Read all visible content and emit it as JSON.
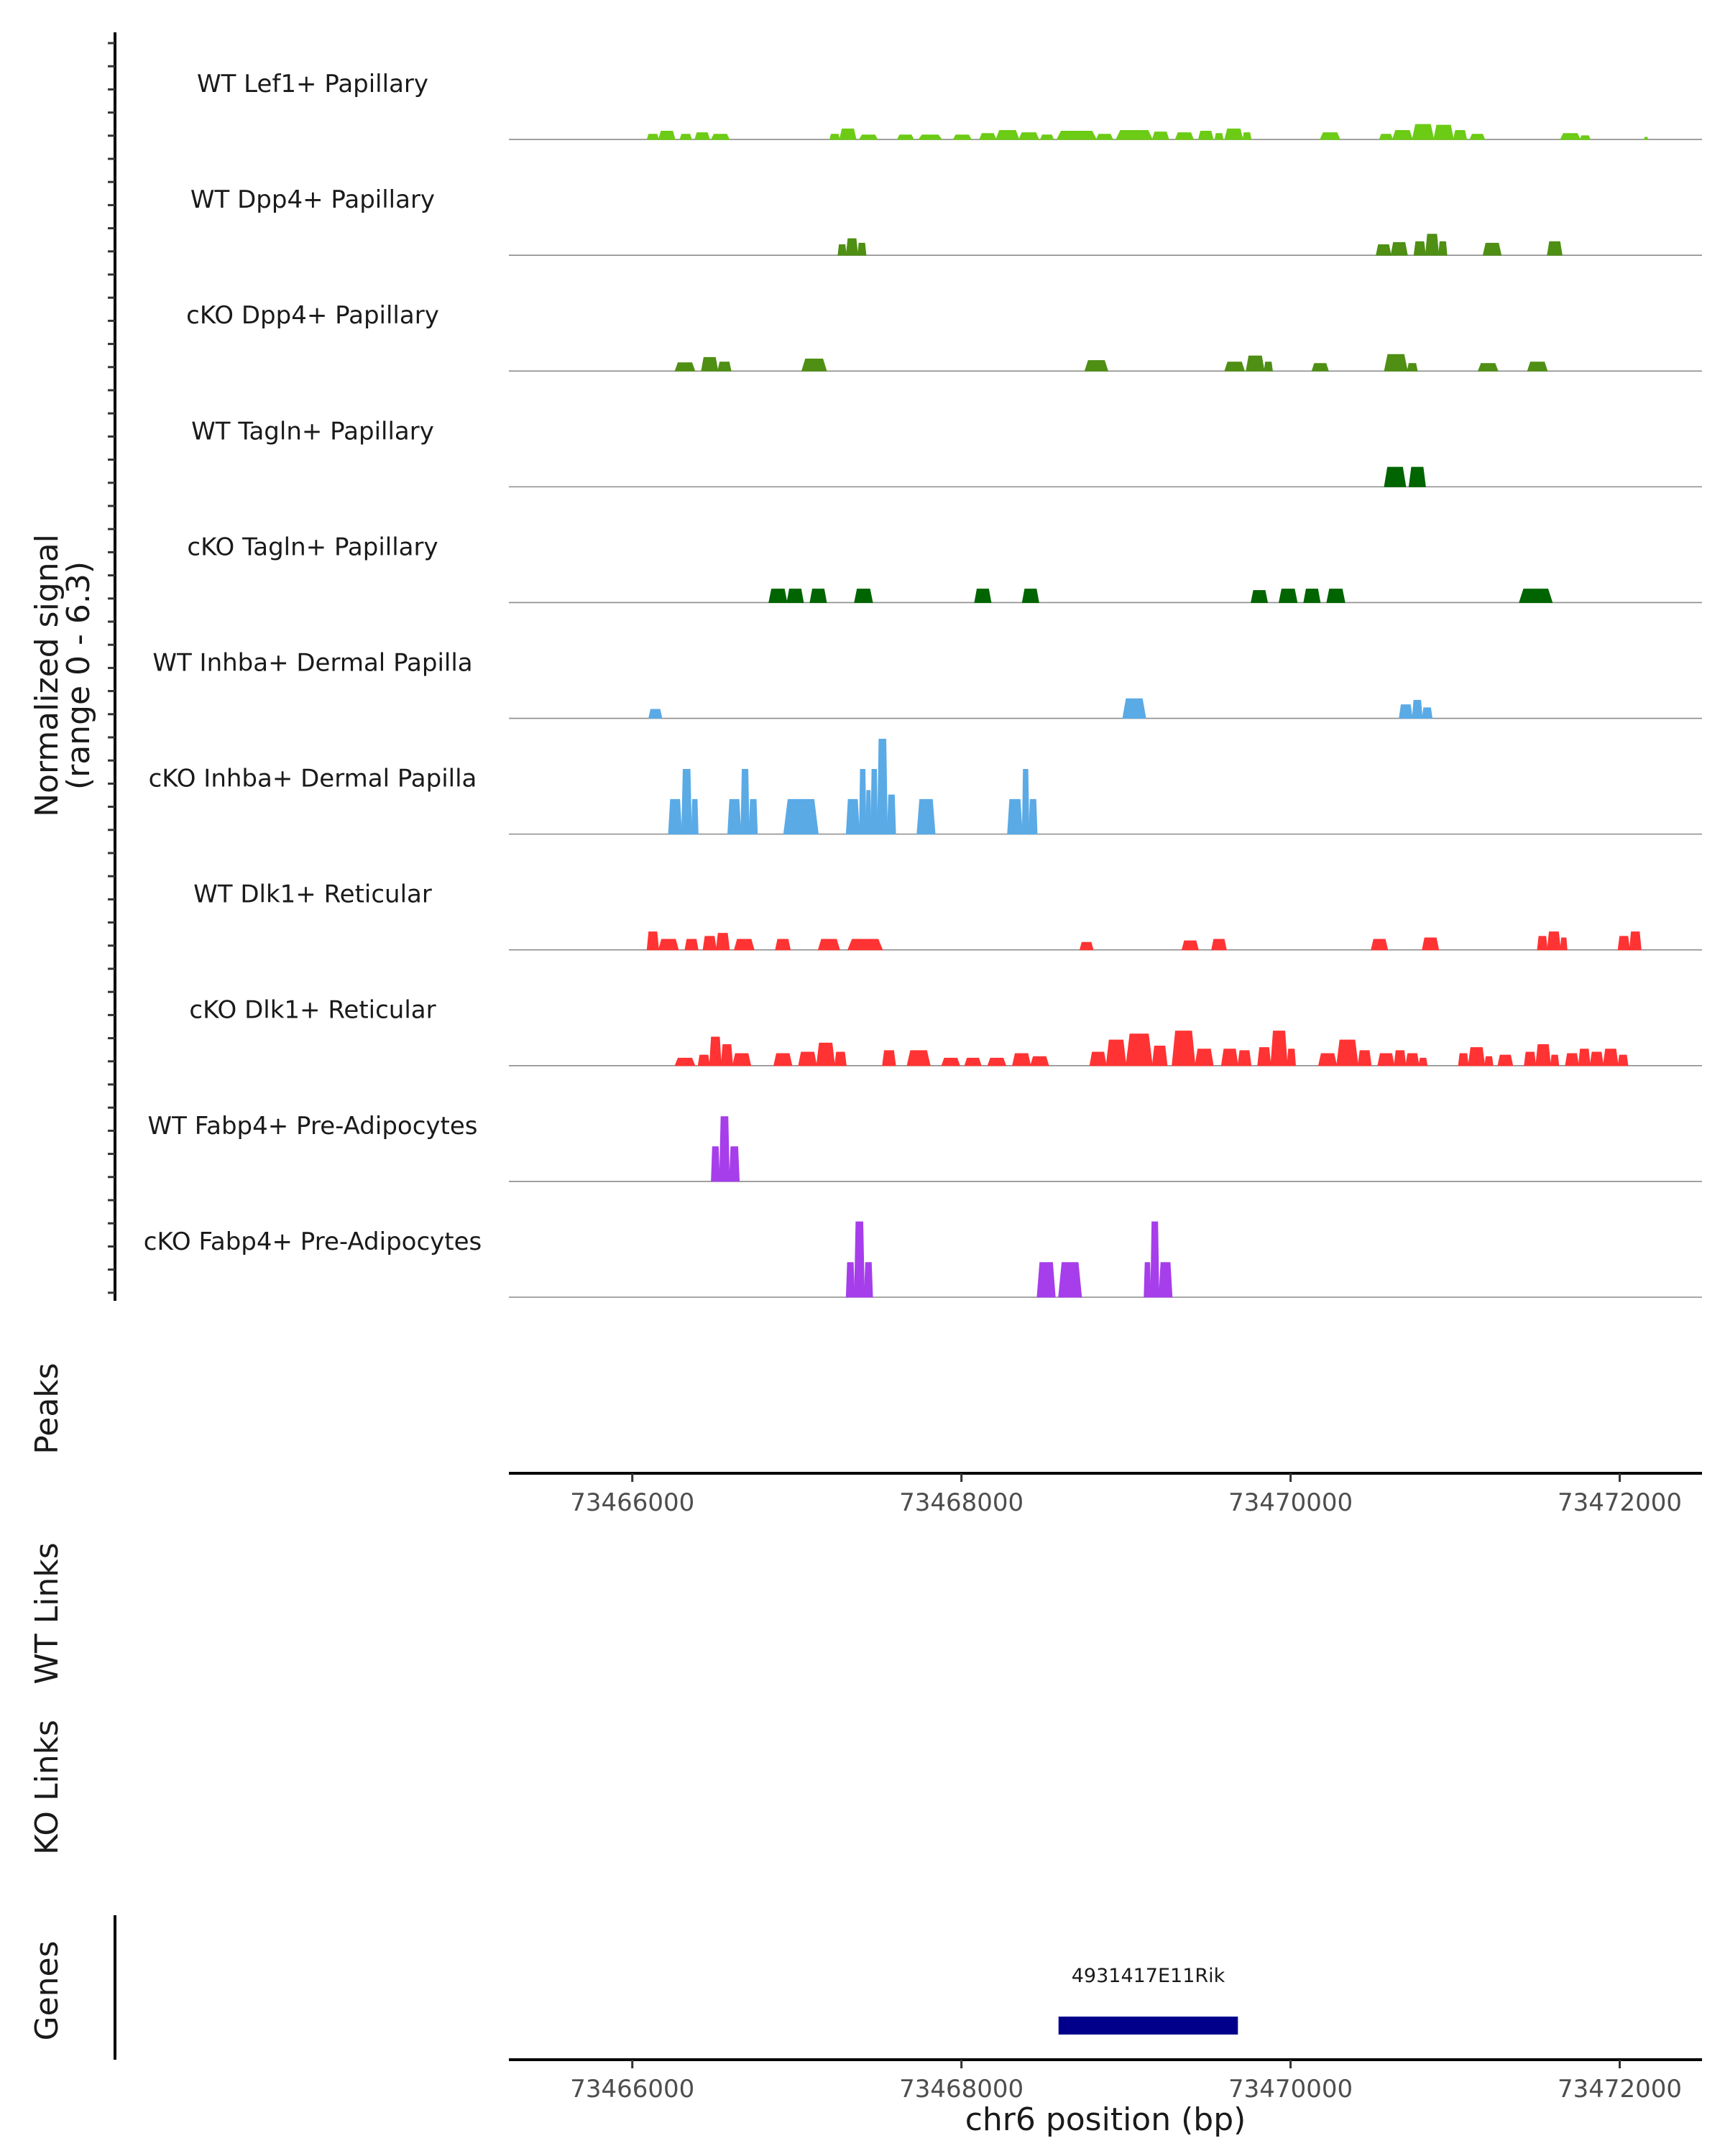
{
  "chart_data": {
    "type": "area",
    "chromosome": "chr6",
    "xlim": [
      73465250,
      73472500
    ],
    "signal_range": [
      0,
      6.3
    ],
    "coverage_ylabel": "Normalized signal\n(range 0 - 6.3)",
    "panels": {
      "peaks": "Peaks",
      "wt_links": "WT Links",
      "ko_links": "KO Links",
      "genes": "Genes"
    },
    "x_ticks": [
      73466000,
      73468000,
      73470000,
      73472000
    ],
    "x_tick_labels": [
      "73466000",
      "73468000",
      "73470000",
      "73472000"
    ],
    "xlabel": "chr6 position (bp)",
    "tracks": [
      {
        "name": "WT Lef1+ Papillary",
        "color": "#6CCB14",
        "peaks": [
          [
            73466090,
            73466160,
            0.35
          ],
          [
            73466160,
            73466260,
            0.55
          ],
          [
            73466290,
            73466360,
            0.35
          ],
          [
            73466380,
            73466470,
            0.45
          ],
          [
            73466480,
            73466590,
            0.35
          ],
          [
            73467200,
            73467260,
            0.35
          ],
          [
            73467260,
            73467360,
            0.7
          ],
          [
            73467380,
            73467490,
            0.3
          ],
          [
            73467610,
            73467710,
            0.3
          ],
          [
            73467740,
            73467880,
            0.3
          ],
          [
            73467950,
            73468060,
            0.3
          ],
          [
            73468110,
            73468210,
            0.4
          ],
          [
            73468210,
            73468350,
            0.6
          ],
          [
            73468350,
            73468470,
            0.45
          ],
          [
            73468480,
            73468560,
            0.3
          ],
          [
            73468580,
            73468820,
            0.55
          ],
          [
            73468820,
            73468920,
            0.35
          ],
          [
            73468940,
            73469160,
            0.6
          ],
          [
            73469160,
            73469260,
            0.5
          ],
          [
            73469300,
            73469410,
            0.45
          ],
          [
            73469440,
            73469530,
            0.55
          ],
          [
            73469540,
            73469590,
            0.4
          ],
          [
            73469600,
            73469710,
            0.7
          ],
          [
            73469710,
            73469760,
            0.45
          ],
          [
            73470180,
            73470300,
            0.45
          ],
          [
            73470540,
            73470620,
            0.35
          ],
          [
            73470620,
            73470740,
            0.6
          ],
          [
            73470740,
            73470870,
            1.0
          ],
          [
            73470870,
            73470990,
            0.95
          ],
          [
            73470990,
            73471070,
            0.6
          ],
          [
            73471090,
            73471180,
            0.35
          ],
          [
            73471640,
            73471760,
            0.4
          ],
          [
            73471760,
            73471820,
            0.25
          ],
          [
            73472150,
            73472170,
            0.15
          ]
        ]
      },
      {
        "name": "WT Dpp4+ Papillary",
        "color": "#4E8F14",
        "peaks": [
          [
            73467250,
            73467300,
            0.7
          ],
          [
            73467300,
            73467370,
            1.1
          ],
          [
            73467370,
            73467420,
            0.8
          ],
          [
            73470520,
            73470610,
            0.7
          ],
          [
            73470610,
            73470710,
            0.85
          ],
          [
            73470750,
            73470820,
            0.9
          ],
          [
            73470820,
            73470900,
            1.4
          ],
          [
            73470900,
            73470950,
            0.9
          ],
          [
            73471170,
            73471280,
            0.8
          ],
          [
            73471560,
            73471650,
            0.9
          ]
        ]
      },
      {
        "name": "cKO Dpp4+ Papillary",
        "color": "#4E8F14",
        "peaks": [
          [
            73466260,
            73466380,
            0.55
          ],
          [
            73466420,
            73466520,
            0.9
          ],
          [
            73466520,
            73466600,
            0.6
          ],
          [
            73467030,
            73467180,
            0.8
          ],
          [
            73468750,
            73468890,
            0.7
          ],
          [
            73469600,
            73469720,
            0.6
          ],
          [
            73469730,
            73469840,
            1.0
          ],
          [
            73469840,
            73469890,
            0.6
          ],
          [
            73470130,
            73470230,
            0.5
          ],
          [
            73470570,
            73470710,
            1.1
          ],
          [
            73470710,
            73470770,
            0.5
          ],
          [
            73471140,
            73471260,
            0.5
          ],
          [
            73471440,
            73471560,
            0.6
          ]
        ]
      },
      {
        "name": "WT Tagln+ Papillary",
        "color": "#006400",
        "peaks": [
          [
            73470570,
            73470700,
            1.3
          ],
          [
            73470720,
            73470820,
            1.3
          ]
        ]
      },
      {
        "name": "cKO Tagln+ Papillary",
        "color": "#006400",
        "peaks": [
          [
            73466830,
            73466940,
            0.9
          ],
          [
            73466940,
            73467040,
            0.9
          ],
          [
            73467080,
            73467180,
            0.9
          ],
          [
            73467350,
            73467460,
            0.9
          ],
          [
            73468080,
            73468180,
            0.9
          ],
          [
            73468370,
            73468470,
            0.9
          ],
          [
            73469760,
            73469860,
            0.8
          ],
          [
            73469930,
            73470040,
            0.9
          ],
          [
            73470080,
            73470180,
            0.9
          ],
          [
            73470220,
            73470330,
            0.9
          ],
          [
            73471390,
            73471590,
            0.9
          ]
        ]
      },
      {
        "name": "WT Inhba+ Dermal Papilla",
        "color": "#5AAAE6",
        "peaks": [
          [
            73466100,
            73466180,
            0.6
          ],
          [
            73468980,
            73469120,
            1.3
          ],
          [
            73470660,
            73470740,
            0.9
          ],
          [
            73470740,
            73470800,
            1.2
          ],
          [
            73470800,
            73470860,
            0.7
          ]
        ]
      },
      {
        "name": "cKO Inhba+ Dermal Papilla",
        "color": "#5AAAE6",
        "peaks": [
          [
            73466220,
            73466300,
            2.3
          ],
          [
            73466300,
            73466360,
            4.3
          ],
          [
            73466360,
            73466400,
            2.3
          ],
          [
            73466580,
            73466660,
            2.3
          ],
          [
            73466660,
            73466710,
            4.3
          ],
          [
            73466710,
            73466760,
            2.3
          ],
          [
            73466920,
            73467130,
            2.3
          ],
          [
            73467300,
            73467380,
            2.3
          ],
          [
            73467380,
            73467420,
            4.3
          ],
          [
            73467420,
            73467450,
            2.9
          ],
          [
            73467450,
            73467490,
            4.3
          ],
          [
            73467490,
            73467550,
            6.3
          ],
          [
            73467550,
            73467600,
            2.6
          ],
          [
            73467730,
            73467840,
            2.3
          ],
          [
            73468280,
            73468370,
            2.3
          ],
          [
            73468370,
            73468410,
            4.3
          ],
          [
            73468410,
            73468460,
            2.3
          ]
        ]
      },
      {
        "name": "WT Dlk1+ Reticular",
        "color": "#FF3333",
        "peaks": [
          [
            73466090,
            73466160,
            1.2
          ],
          [
            73466160,
            73466280,
            0.7
          ],
          [
            73466320,
            73466400,
            0.7
          ],
          [
            73466430,
            73466510,
            0.9
          ],
          [
            73466510,
            73466590,
            1.1
          ],
          [
            73466620,
            73466740,
            0.7
          ],
          [
            73466870,
            73466960,
            0.7
          ],
          [
            73467130,
            73467260,
            0.7
          ],
          [
            73467310,
            73467520,
            0.7
          ],
          [
            73468720,
            73468800,
            0.5
          ],
          [
            73469340,
            73469440,
            0.6
          ],
          [
            73469520,
            73469610,
            0.7
          ],
          [
            73470490,
            73470590,
            0.7
          ],
          [
            73470800,
            73470900,
            0.8
          ],
          [
            73471500,
            73471560,
            0.9
          ],
          [
            73471560,
            73471640,
            1.2
          ],
          [
            73471640,
            73471680,
            0.8
          ],
          [
            73471990,
            73472060,
            0.9
          ],
          [
            73472060,
            73472130,
            1.2
          ]
        ]
      },
      {
        "name": "cKO Dlk1+ Reticular",
        "color": "#FF3333",
        "peaks": [
          [
            73466260,
            73466380,
            0.5
          ],
          [
            73466400,
            73466470,
            0.7
          ],
          [
            73466470,
            73466540,
            1.9
          ],
          [
            73466540,
            73466610,
            1.4
          ],
          [
            73466610,
            73466720,
            0.8
          ],
          [
            73466860,
            73466970,
            0.8
          ],
          [
            73467010,
            73467120,
            0.9
          ],
          [
            73467120,
            73467230,
            1.5
          ],
          [
            73467230,
            73467300,
            0.9
          ],
          [
            73467520,
            73467600,
            1.0
          ],
          [
            73467670,
            73467810,
            1.0
          ],
          [
            73467880,
            73467990,
            0.5
          ],
          [
            73468020,
            73468120,
            0.5
          ],
          [
            73468160,
            73468270,
            0.5
          ],
          [
            73468310,
            73468420,
            0.8
          ],
          [
            73468420,
            73468530,
            0.6
          ],
          [
            73468780,
            73468880,
            0.9
          ],
          [
            73468880,
            73469000,
            1.7
          ],
          [
            73469000,
            73469160,
            2.1
          ],
          [
            73469160,
            73469250,
            1.3
          ],
          [
            73469280,
            73469420,
            2.3
          ],
          [
            73469420,
            73469530,
            1.1
          ],
          [
            73469580,
            73469680,
            1.1
          ],
          [
            73469680,
            73469760,
            1.0
          ],
          [
            73469800,
            73469880,
            1.2
          ],
          [
            73469880,
            73469980,
            2.3
          ],
          [
            73469980,
            73470030,
            1.1
          ],
          [
            73470170,
            73470280,
            0.8
          ],
          [
            73470280,
            73470410,
            1.7
          ],
          [
            73470410,
            73470490,
            1.0
          ],
          [
            73470530,
            73470630,
            0.8
          ],
          [
            73470630,
            73470700,
            1.0
          ],
          [
            73470700,
            73470780,
            0.8
          ],
          [
            73470780,
            73470830,
            0.5
          ],
          [
            73471020,
            73471080,
            0.8
          ],
          [
            73471080,
            73471180,
            1.2
          ],
          [
            73471180,
            73471230,
            0.6
          ],
          [
            73471260,
            73471350,
            0.7
          ],
          [
            73471420,
            73471490,
            0.9
          ],
          [
            73471490,
            73471580,
            1.4
          ],
          [
            73471580,
            73471630,
            0.7
          ],
          [
            73471670,
            73471750,
            0.8
          ],
          [
            73471750,
            73471820,
            1.1
          ],
          [
            73471820,
            73471900,
            0.9
          ],
          [
            73471900,
            73471990,
            1.1
          ],
          [
            73471990,
            73472050,
            0.7
          ]
        ]
      },
      {
        "name": "WT Fabp4+ Pre-Adipocytes",
        "color": "#A63EEB",
        "peaks": [
          [
            73466480,
            73466530,
            2.3
          ],
          [
            73466530,
            73466590,
            4.3
          ],
          [
            73466590,
            73466650,
            2.3
          ]
        ]
      },
      {
        "name": "cKO Fabp4+ Pre-Adipocytes",
        "color": "#A63EEB",
        "peaks": [
          [
            73467300,
            73467350,
            2.3
          ],
          [
            73467350,
            73467410,
            5.0
          ],
          [
            73467410,
            73467460,
            2.3
          ],
          [
            73468460,
            73468570,
            2.3
          ],
          [
            73468590,
            73468730,
            2.3
          ],
          [
            73469110,
            73469150,
            2.3
          ],
          [
            73469150,
            73469200,
            5.0
          ],
          [
            73469200,
            73469280,
            2.3
          ]
        ]
      }
    ],
    "genes": [
      {
        "name": "4931417E11Rik",
        "start": 73468590,
        "end": 73469680,
        "color": "#00008B"
      }
    ]
  }
}
